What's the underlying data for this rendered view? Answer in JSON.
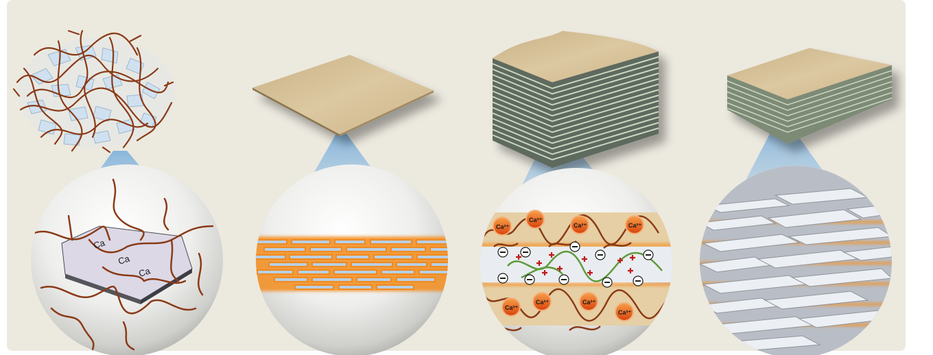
{
  "panels": [
    {
      "id": "panel-1",
      "labels": [
        "Ca",
        "Ca",
        "Ca"
      ]
    },
    {
      "id": "panel-2",
      "labels": []
    },
    {
      "id": "panel-3",
      "labels": [
        "Ca²⁺",
        "Ca²⁺",
        "Ca²⁺",
        "Ca²⁺",
        "Ca²⁺",
        "Ca²⁺",
        "Ca²⁺",
        "Ca²⁺"
      ]
    },
    {
      "id": "panel-4",
      "labels": []
    }
  ],
  "colors": {
    "background": "#ece9df",
    "polymer_chain": "#8a3a16",
    "sheet_tan": "#d8c29a",
    "nanosheet_fill": "#cfe1f0",
    "orange_glow": "#f2922a",
    "green_chain": "#5e9a3a",
    "plus_sign": "#c01818",
    "minus_sign": "#1a1a1a",
    "cation_ball": "#e85a0c",
    "zoom_cone": "#a9c9e6",
    "grey_platelet": "#c9cdd3"
  },
  "icons": [
    "polymer-nanosheet-ball",
    "nanosheet-film",
    "layered-stack",
    "dense-film",
    "magnifier-sphere"
  ]
}
